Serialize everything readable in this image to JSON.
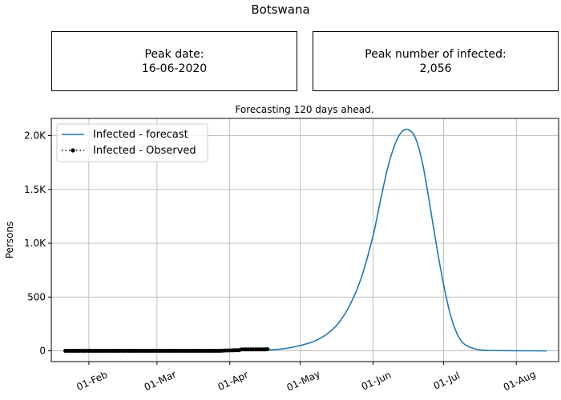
{
  "title": "Botswana",
  "boxes": {
    "peak_date": {
      "label": "Peak date:",
      "value": "16-06-2020"
    },
    "peak_number": {
      "label": "Peak number of infected:",
      "value": "2,056"
    }
  },
  "colors": {
    "forecast": "#1f77b4",
    "observed": "#000000",
    "grid": "#b0b0b0"
  },
  "chart_data": {
    "type": "line",
    "title": "Forecasting 120 days ahead.",
    "xlabel": "",
    "ylabel": "Persons",
    "x_axis": "date",
    "xlim": [
      "2020-01-16",
      "2020-08-19"
    ],
    "ylim": [
      -100,
      2160
    ],
    "x_ticks": [
      {
        "date": "2020-02-01",
        "label": "01-Feb"
      },
      {
        "date": "2020-03-01",
        "label": "01-Mar"
      },
      {
        "date": "2020-04-01",
        "label": "01-Apr"
      },
      {
        "date": "2020-05-01",
        "label": "01-May"
      },
      {
        "date": "2020-06-01",
        "label": "01-Jun"
      },
      {
        "date": "2020-07-01",
        "label": "01-Jul"
      },
      {
        "date": "2020-08-01",
        "label": "01-Aug"
      }
    ],
    "y_ticks": [
      {
        "value": 0,
        "label": "0"
      },
      {
        "value": 500,
        "label": "500"
      },
      {
        "value": 1000,
        "label": "1.0K"
      },
      {
        "value": 1500,
        "label": "1.5K"
      },
      {
        "value": 2000,
        "label": "2.0K"
      }
    ],
    "grid": true,
    "legend": "top-left",
    "series": [
      {
        "name": "Infected - forecast",
        "style": "solid",
        "points": [
          [
            "2020-04-17",
            10
          ],
          [
            "2020-04-22",
            15
          ],
          [
            "2020-04-27",
            30
          ],
          [
            "2020-05-02",
            55
          ],
          [
            "2020-05-07",
            90
          ],
          [
            "2020-05-12",
            150
          ],
          [
            "2020-05-17",
            250
          ],
          [
            "2020-05-22",
            420
          ],
          [
            "2020-05-27",
            680
          ],
          [
            "2020-06-01",
            1070
          ],
          [
            "2020-06-04",
            1380
          ],
          [
            "2020-06-07",
            1680
          ],
          [
            "2020-06-10",
            1900
          ],
          [
            "2020-06-13",
            2030
          ],
          [
            "2020-06-16",
            2056
          ],
          [
            "2020-06-19",
            1980
          ],
          [
            "2020-06-22",
            1750
          ],
          [
            "2020-06-25",
            1380
          ],
          [
            "2020-06-28",
            980
          ],
          [
            "2020-07-01",
            620
          ],
          [
            "2020-07-04",
            330
          ],
          [
            "2020-07-07",
            150
          ],
          [
            "2020-07-10",
            60
          ],
          [
            "2020-07-15",
            15
          ],
          [
            "2020-07-20",
            4
          ],
          [
            "2020-08-01",
            1
          ],
          [
            "2020-08-14",
            0
          ]
        ]
      },
      {
        "name": "Infected - Observed",
        "style": "dotted-markers",
        "start": "2020-01-22",
        "end": "2020-04-17",
        "points": [
          [
            "2020-03-29",
            1
          ],
          [
            "2020-03-30",
            3
          ],
          [
            "2020-04-01",
            4
          ],
          [
            "2020-04-03",
            6
          ],
          [
            "2020-04-05",
            6
          ],
          [
            "2020-04-06",
            13
          ],
          [
            "2020-04-10",
            13
          ],
          [
            "2020-04-17",
            15
          ]
        ]
      }
    ]
  }
}
